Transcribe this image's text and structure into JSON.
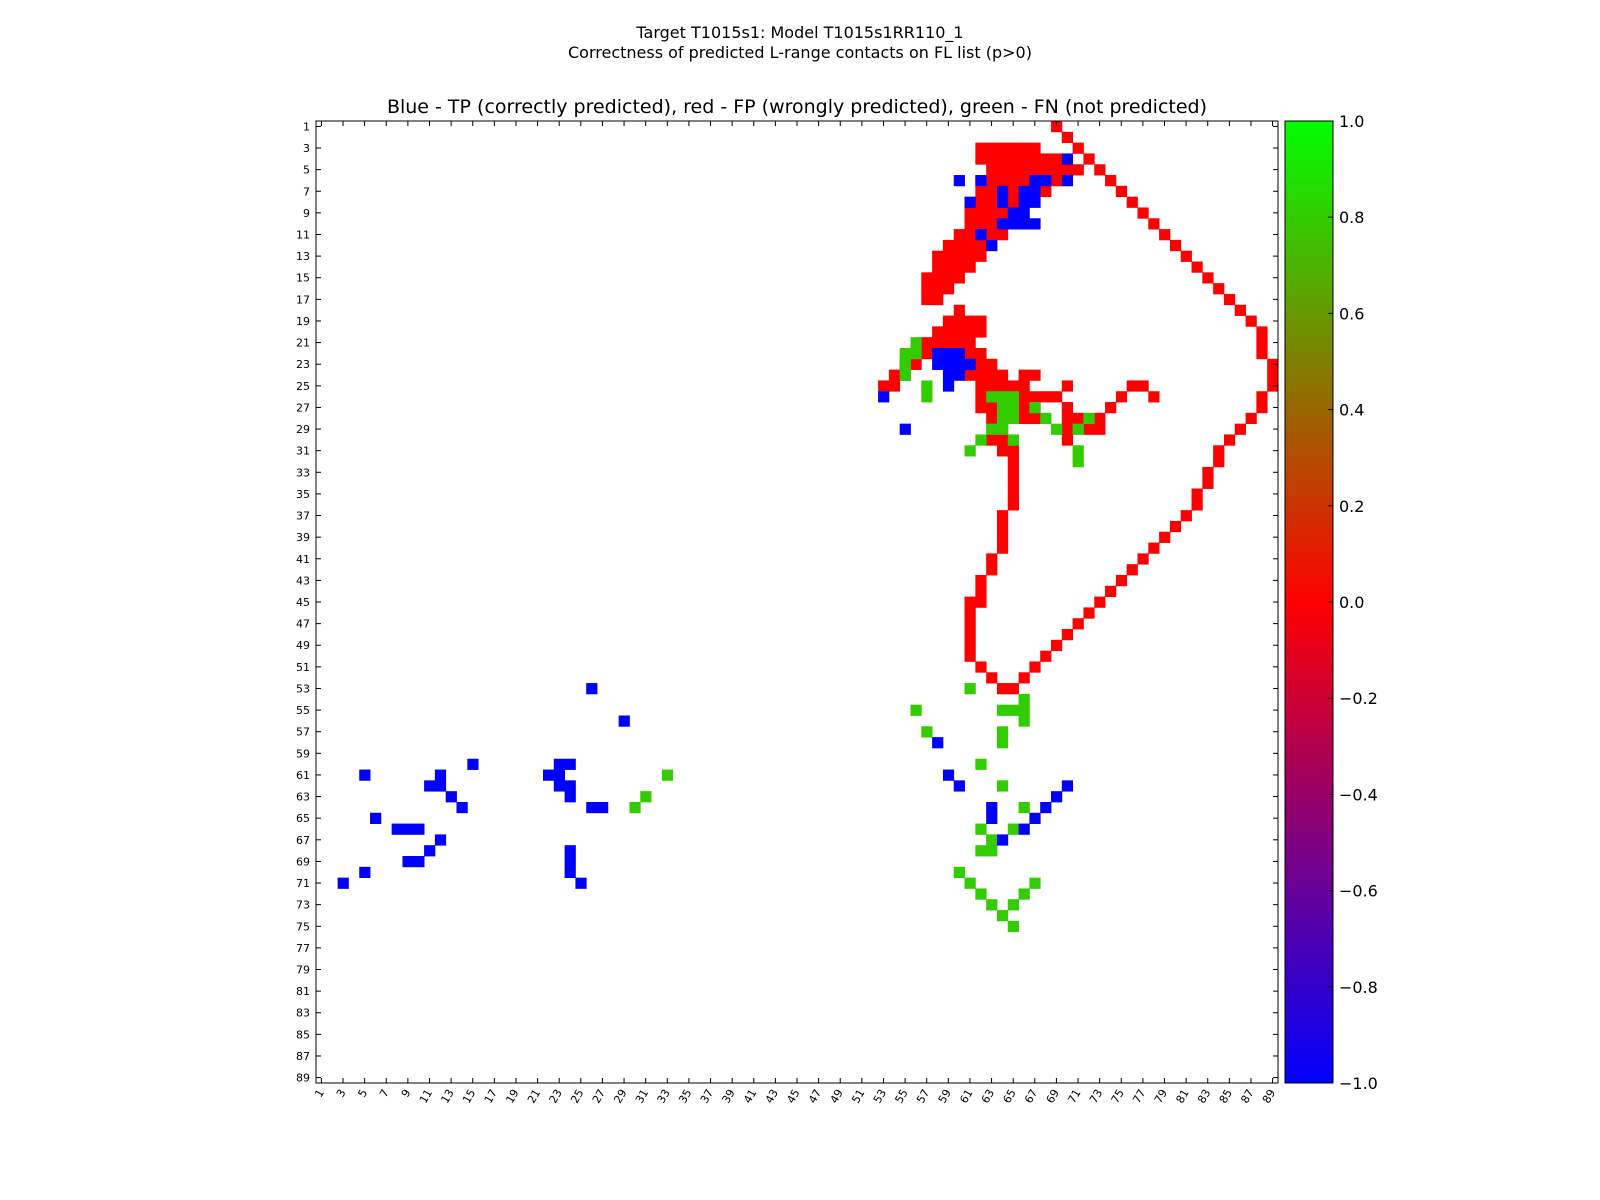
{
  "figure": {
    "title_line1": "Target T1015s1: Model T1015s1RR110_1",
    "title_line2": "Correctness of predicted L-range contacts on FL list (p>0)"
  },
  "chart_data": {
    "type": "heatmap",
    "title": "Blue - TP (correctly predicted), red - FP (wrongly predicted), green - FN (not predicted)",
    "matrix_size": 89,
    "x_ticks": [
      1,
      3,
      5,
      7,
      9,
      11,
      13,
      15,
      17,
      19,
      21,
      23,
      25,
      27,
      29,
      31,
      33,
      35,
      37,
      39,
      41,
      43,
      45,
      47,
      49,
      51,
      53,
      55,
      57,
      59,
      61,
      63,
      65,
      67,
      69,
      71,
      73,
      75,
      77,
      79,
      81,
      83,
      85,
      87,
      89
    ],
    "y_ticks": [
      1,
      3,
      5,
      7,
      9,
      11,
      13,
      15,
      17,
      19,
      21,
      23,
      25,
      27,
      29,
      31,
      33,
      35,
      37,
      39,
      41,
      43,
      45,
      47,
      49,
      51,
      53,
      55,
      57,
      59,
      61,
      63,
      65,
      67,
      69,
      71,
      73,
      75,
      77,
      79,
      81,
      83,
      85,
      87,
      89
    ],
    "colorbar": {
      "min": -1.0,
      "max": 1.0,
      "tick_values": [
        1.0,
        0.8,
        0.6,
        0.4,
        0.2,
        0.0,
        -0.2,
        -0.4,
        -0.6,
        -0.8,
        -1.0
      ],
      "tick_labels": [
        "1.0",
        "0.8",
        "0.6",
        "0.4",
        "0.2",
        "0.0",
        "−0.2",
        "−0.4",
        "−0.6",
        "−0.8",
        "−1.0"
      ],
      "stops": [
        {
          "value": -1.0,
          "color": "#0000ff"
        },
        {
          "value": 0.0,
          "color": "#ff0000"
        },
        {
          "value": 1.0,
          "color": "#00ff00"
        }
      ]
    },
    "legend_colors": {
      "TP": "#0000ff",
      "FP": "#ff0000",
      "FN": "#33cc00"
    },
    "cells": {
      "TP": [
        [
          61,
          5
        ],
        [
          65,
          6
        ],
        [
          62,
          11
        ],
        [
          61,
          12
        ],
        [
          66,
          8
        ],
        [
          66,
          9
        ],
        [
          66,
          10
        ],
        [
          63,
          13
        ],
        [
          64,
          14
        ],
        [
          69,
          9
        ],
        [
          69,
          10
        ],
        [
          68,
          11
        ],
        [
          67,
          12
        ],
        [
          62,
          12
        ],
        [
          60,
          15
        ],
        [
          6,
          60
        ],
        [
          6,
          62
        ],
        [
          8,
          61
        ],
        [
          7,
          64
        ],
        [
          8,
          64
        ],
        [
          11,
          62
        ],
        [
          12,
          63
        ],
        [
          10,
          64
        ],
        [
          10,
          65
        ],
        [
          9,
          65
        ],
        [
          9,
          66
        ],
        [
          10,
          66
        ],
        [
          10,
          67
        ],
        [
          8,
          66
        ],
        [
          8,
          67
        ],
        [
          7,
          66
        ],
        [
          7,
          67
        ],
        [
          6,
          67
        ],
        [
          6,
          68
        ],
        [
          4,
          70
        ],
        [
          6,
          70
        ],
        [
          22,
          58
        ],
        [
          23,
          58
        ],
        [
          22,
          59
        ],
        [
          22,
          60
        ],
        [
          23,
          59
        ],
        [
          23,
          60
        ],
        [
          23,
          61
        ],
        [
          24,
          60
        ],
        [
          24,
          59
        ],
        [
          25,
          59
        ],
        [
          26,
          53
        ],
        [
          29,
          55
        ],
        [
          60,
          23
        ],
        [
          60,
          24
        ],
        [
          61,
          23
        ],
        [
          61,
          22
        ],
        [
          62,
          23
        ],
        [
          62,
          24
        ],
        [
          63,
          24
        ],
        [
          64,
          26
        ],
        [
          64,
          27
        ],
        [
          68,
          24
        ],
        [
          69,
          24
        ],
        [
          70,
          24
        ],
        [
          71,
          25
        ],
        [
          53,
          26
        ],
        [
          56,
          29
        ],
        [
          58,
          58
        ],
        [
          61,
          59
        ],
        [
          62,
          60
        ],
        [
          64,
          63
        ],
        [
          65,
          63
        ],
        [
          67,
          64
        ],
        [
          66,
          66
        ],
        [
          65,
          67
        ],
        [
          64,
          68
        ],
        [
          63,
          69
        ],
        [
          62,
          70
        ],
        [
          71,
          3
        ],
        [
          70,
          5
        ]
      ],
      "FN": [
        [
          26,
          63
        ],
        [
          26,
          64
        ],
        [
          26,
          65
        ],
        [
          27,
          64
        ],
        [
          27,
          65
        ],
        [
          28,
          64
        ],
        [
          28,
          65
        ],
        [
          29,
          63
        ],
        [
          30,
          62
        ],
        [
          31,
          61
        ],
        [
          29,
          64
        ],
        [
          30,
          65
        ],
        [
          27,
          67
        ],
        [
          28,
          68
        ],
        [
          29,
          69
        ],
        [
          31,
          71
        ],
        [
          32,
          71
        ],
        [
          29,
          71
        ],
        [
          28,
          72
        ],
        [
          64,
          30
        ],
        [
          63,
          31
        ],
        [
          61,
          33
        ],
        [
          57,
          57
        ],
        [
          55,
          56
        ],
        [
          26,
          57
        ],
        [
          25,
          57
        ],
        [
          22,
          56
        ],
        [
          22,
          55
        ],
        [
          21,
          56
        ],
        [
          23,
          55
        ],
        [
          24,
          55
        ],
        [
          53,
          61
        ],
        [
          55,
          64
        ],
        [
          55,
          65
        ],
        [
          54,
          66
        ],
        [
          56,
          66
        ],
        [
          55,
          66
        ],
        [
          57,
          64
        ],
        [
          58,
          64
        ],
        [
          60,
          62
        ],
        [
          62,
          64
        ],
        [
          64,
          66
        ],
        [
          66,
          62
        ],
        [
          66,
          65
        ],
        [
          67,
          63
        ],
        [
          68,
          62
        ],
        [
          68,
          63
        ],
        [
          70,
          60
        ],
        [
          71,
          61
        ],
        [
          72,
          62
        ],
        [
          73,
          63
        ],
        [
          74,
          64
        ],
        [
          75,
          65
        ],
        [
          73,
          65
        ],
        [
          72,
          66
        ],
        [
          71,
          67
        ]
      ],
      "FP": [
        [
          3,
          62
        ],
        [
          3,
          63
        ],
        [
          3,
          64
        ],
        [
          3,
          65
        ],
        [
          3,
          66
        ],
        [
          3,
          67
        ],
        [
          4,
          62
        ],
        [
          4,
          63
        ],
        [
          4,
          64
        ],
        [
          4,
          65
        ],
        [
          4,
          66
        ],
        [
          4,
          67
        ],
        [
          4,
          68
        ],
        [
          4,
          69
        ],
        [
          5,
          63
        ],
        [
          5,
          64
        ],
        [
          5,
          65
        ],
        [
          5,
          66
        ],
        [
          5,
          67
        ],
        [
          5,
          68
        ],
        [
          5,
          69
        ],
        [
          5,
          70
        ],
        [
          5,
          71
        ],
        [
          6,
          62
        ],
        [
          6,
          63
        ],
        [
          6,
          64
        ],
        [
          6,
          65
        ],
        [
          6,
          66
        ],
        [
          6,
          67
        ],
        [
          6,
          68
        ],
        [
          6,
          69
        ],
        [
          7,
          62
        ],
        [
          7,
          63
        ],
        [
          7,
          64
        ],
        [
          7,
          65
        ],
        [
          7,
          66
        ],
        [
          7,
          67
        ],
        [
          7,
          68
        ],
        [
          8,
          62
        ],
        [
          8,
          63
        ],
        [
          8,
          64
        ],
        [
          8,
          65
        ],
        [
          9,
          61
        ],
        [
          9,
          62
        ],
        [
          9,
          63
        ],
        [
          9,
          64
        ],
        [
          10,
          61
        ],
        [
          10,
          62
        ],
        [
          10,
          63
        ],
        [
          10,
          64
        ],
        [
          11,
          60
        ],
        [
          11,
          61
        ],
        [
          11,
          62
        ],
        [
          11,
          63
        ],
        [
          11,
          64
        ],
        [
          12,
          59
        ],
        [
          12,
          60
        ],
        [
          12,
          61
        ],
        [
          12,
          62
        ],
        [
          12,
          63
        ],
        [
          13,
          58
        ],
        [
          13,
          59
        ],
        [
          13,
          60
        ],
        [
          13,
          61
        ],
        [
          13,
          62
        ],
        [
          14,
          58
        ],
        [
          14,
          59
        ],
        [
          14,
          60
        ],
        [
          14,
          61
        ],
        [
          15,
          57
        ],
        [
          15,
          58
        ],
        [
          15,
          59
        ],
        [
          15,
          60
        ],
        [
          16,
          57
        ],
        [
          16,
          58
        ],
        [
          16,
          59
        ],
        [
          17,
          57
        ],
        [
          17,
          58
        ],
        [
          21,
          59
        ],
        [
          21,
          60
        ],
        [
          22,
          61
        ],
        [
          22,
          62
        ],
        [
          23,
          62
        ],
        [
          23,
          63
        ],
        [
          24,
          63
        ],
        [
          24,
          64
        ],
        [
          25,
          64
        ],
        [
          25,
          65
        ],
        [
          25,
          66
        ],
        [
          24,
          66
        ],
        [
          24,
          67
        ],
        [
          26,
          66
        ],
        [
          26,
          67
        ],
        [
          27,
          66
        ],
        [
          27,
          67
        ],
        [
          28,
          66
        ],
        [
          28,
          67
        ],
        [
          26,
          68
        ],
        [
          26,
          69
        ],
        [
          25,
          70
        ],
        [
          27,
          70
        ],
        [
          28,
          70
        ],
        [
          28,
          71
        ],
        [
          29,
          70
        ],
        [
          30,
          70
        ],
        [
          29,
          72
        ],
        [
          29,
          73
        ],
        [
          28,
          73
        ],
        [
          27,
          74
        ],
        [
          26,
          75
        ],
        [
          25,
          76
        ],
        [
          25,
          77
        ],
        [
          26,
          78
        ],
        [
          22,
          56
        ],
        [
          22,
          57
        ],
        [
          23,
          55
        ],
        [
          23,
          56
        ],
        [
          24,
          54
        ],
        [
          24,
          55
        ],
        [
          25,
          53
        ],
        [
          25,
          54
        ],
        [
          21,
          57
        ],
        [
          20,
          58
        ],
        [
          19,
          59
        ],
        [
          19,
          60
        ],
        [
          18,
          60
        ],
        [
          19,
          61
        ],
        [
          19,
          62
        ],
        [
          20,
          61
        ],
        [
          20,
          62
        ],
        [
          21,
          58
        ],
        [
          21,
          59
        ],
        [
          21,
          60
        ],
        [
          21,
          61
        ],
        [
          20,
          59
        ],
        [
          20,
          60
        ],
        [
          20,
          61
        ],
        [
          22,
          60
        ],
        [
          23,
          60
        ],
        [
          24,
          61
        ],
        [
          24,
          62
        ],
        [
          25,
          62
        ],
        [
          25,
          63
        ],
        [
          26,
          62
        ],
        [
          26,
          63
        ],
        [
          27,
          62
        ],
        [
          27,
          63
        ],
        [
          28,
          63
        ],
        [
          28,
          64
        ],
        [
          29,
          64
        ],
        [
          30,
          63
        ],
        [
          30,
          64
        ],
        [
          31,
          64
        ],
        [
          31,
          65
        ],
        [
          32,
          65
        ],
        [
          33,
          65
        ],
        [
          34,
          65
        ],
        [
          35,
          65
        ],
        [
          36,
          65
        ],
        [
          37,
          64
        ],
        [
          38,
          64
        ],
        [
          39,
          64
        ],
        [
          40,
          64
        ],
        [
          41,
          63
        ],
        [
          42,
          63
        ],
        [
          43,
          62
        ],
        [
          44,
          62
        ],
        [
          45,
          62
        ],
        [
          45,
          61
        ],
        [
          46,
          61
        ],
        [
          47,
          61
        ],
        [
          48,
          61
        ],
        [
          49,
          61
        ],
        [
          50,
          61
        ],
        [
          51,
          62
        ],
        [
          52,
          63
        ],
        [
          53,
          64
        ],
        [
          53,
          65
        ],
        [
          52,
          66
        ],
        [
          51,
          67
        ],
        [
          50,
          68
        ],
        [
          49,
          69
        ],
        [
          48,
          70
        ],
        [
          47,
          71
        ],
        [
          46,
          72
        ],
        [
          45,
          73
        ],
        [
          44,
          74
        ],
        [
          43,
          75
        ],
        [
          42,
          76
        ],
        [
          41,
          77
        ],
        [
          40,
          78
        ],
        [
          39,
          79
        ],
        [
          38,
          80
        ],
        [
          37,
          81
        ],
        [
          36,
          82
        ],
        [
          35,
          82
        ],
        [
          34,
          83
        ],
        [
          33,
          83
        ],
        [
          32,
          84
        ],
        [
          31,
          84
        ],
        [
          30,
          85
        ],
        [
          29,
          86
        ],
        [
          28,
          87
        ],
        [
          27,
          88
        ],
        [
          26,
          88
        ],
        [
          25,
          89
        ],
        [
          24,
          89
        ],
        [
          23,
          89
        ],
        [
          22,
          88
        ],
        [
          21,
          88
        ],
        [
          20,
          88
        ],
        [
          19,
          87
        ],
        [
          18,
          86
        ],
        [
          17,
          85
        ],
        [
          16,
          84
        ],
        [
          15,
          83
        ],
        [
          14,
          82
        ],
        [
          13,
          81
        ],
        [
          12,
          80
        ],
        [
          11,
          79
        ],
        [
          10,
          78
        ],
        [
          9,
          77
        ],
        [
          8,
          76
        ],
        [
          7,
          75
        ],
        [
          6,
          74
        ],
        [
          5,
          73
        ],
        [
          4,
          72
        ],
        [
          3,
          71
        ],
        [
          2,
          70
        ],
        [
          1,
          69
        ]
      ]
    }
  }
}
